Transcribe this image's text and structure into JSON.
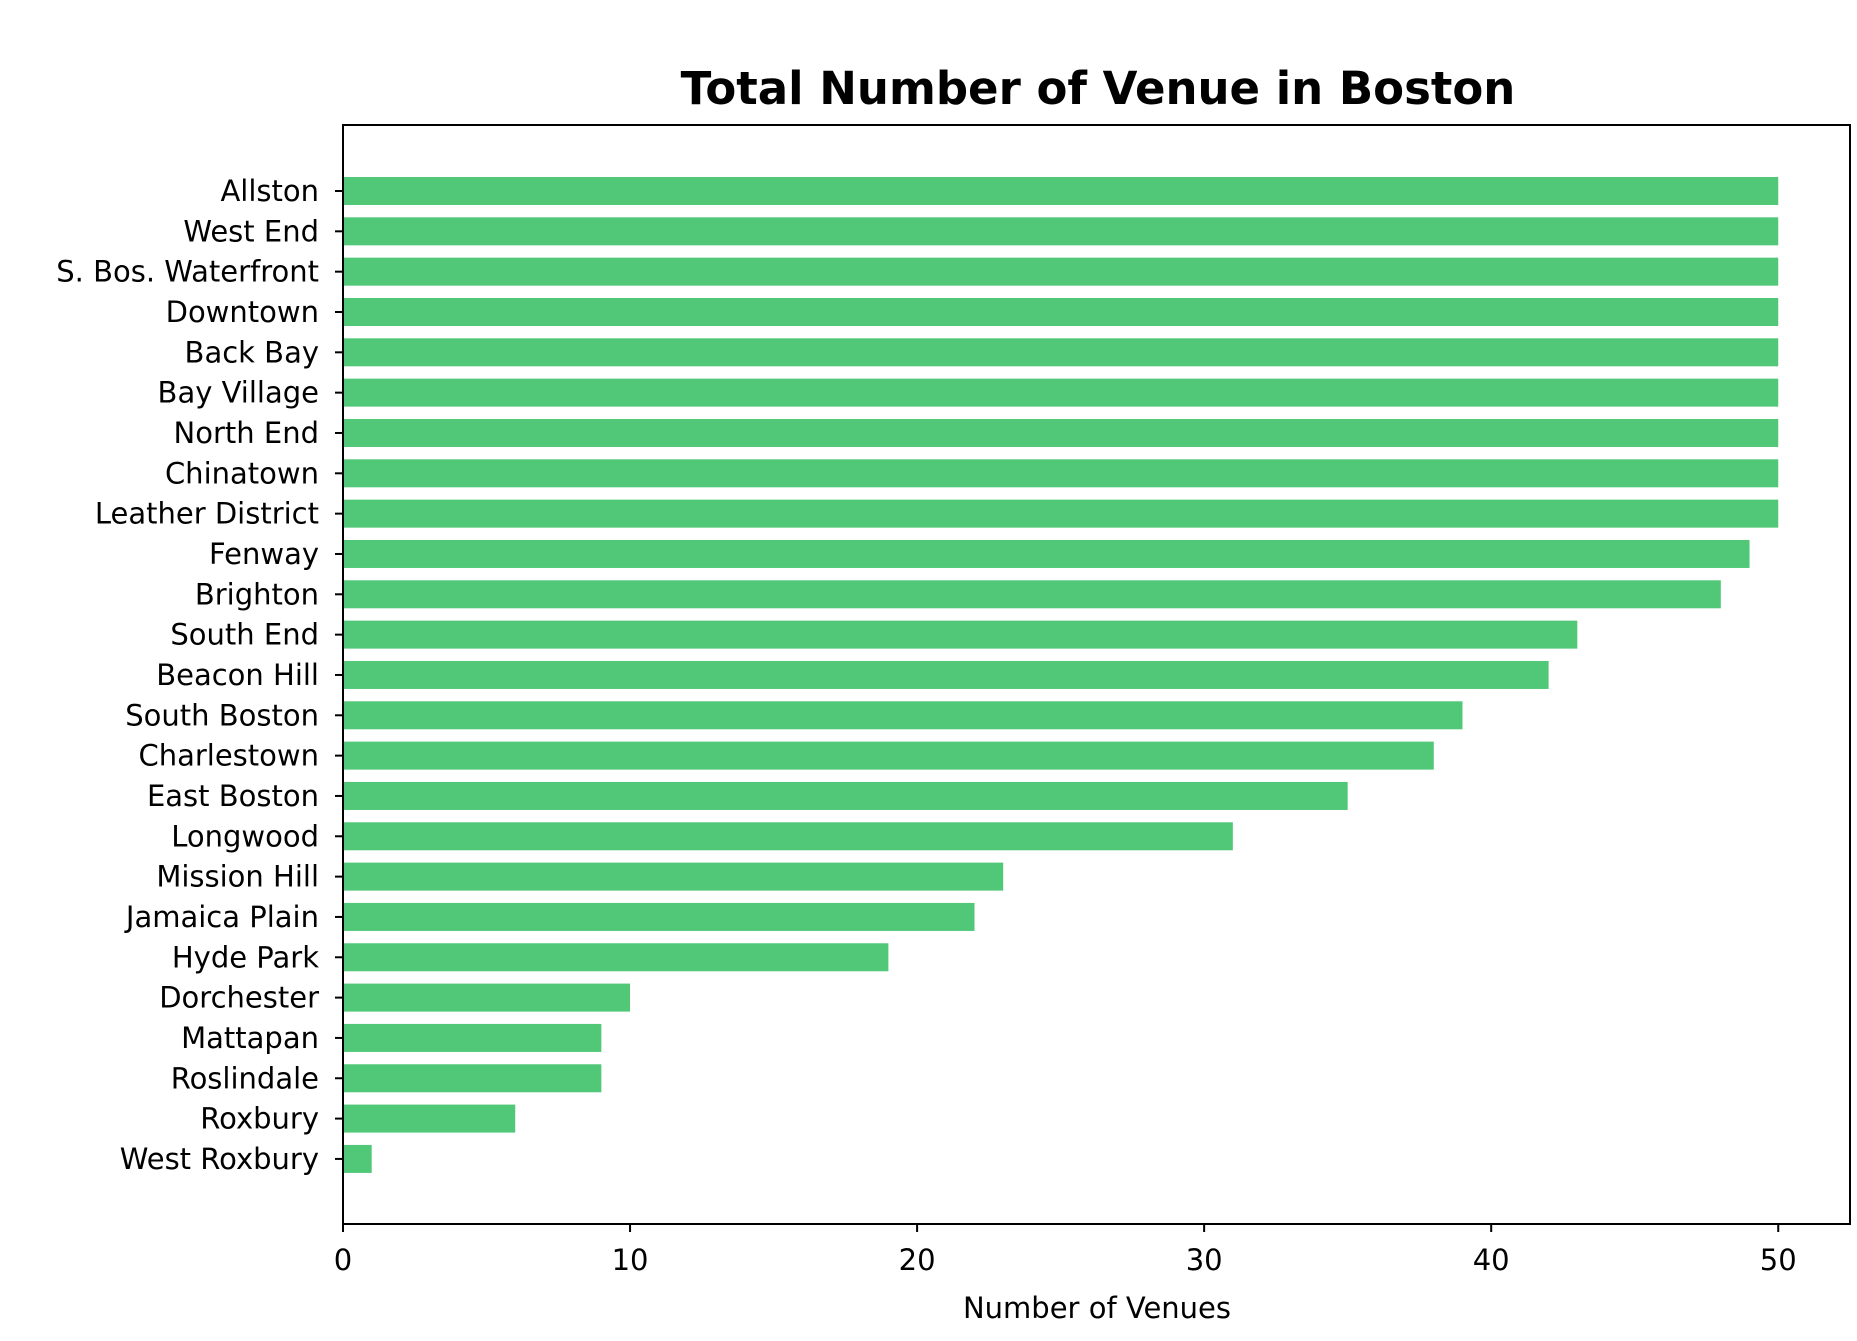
{
  "chart_data": {
    "type": "bar",
    "orientation": "horizontal",
    "title": "Total Number of Venue in Boston",
    "xlabel": "Number of Venues",
    "ylabel": "",
    "xlim": [
      0,
      52.5
    ],
    "xticks": [
      "0",
      "10",
      "20",
      "30",
      "40",
      "50"
    ],
    "bar_color": "#50c878",
    "grid": false,
    "categories": [
      "Allston",
      "West End",
      "S. Bos. Waterfront",
      "Downtown",
      "Back Bay",
      "Bay Village",
      "North End",
      "Chinatown",
      "Leather District",
      "Fenway",
      "Brighton",
      "South End",
      "Beacon Hill",
      "South Boston",
      "Charlestown",
      "East Boston",
      "Longwood",
      "Mission Hill",
      "Jamaica Plain",
      "Hyde Park",
      "Dorchester",
      "Mattapan",
      "Roslindale",
      "Roxbury",
      "West Roxbury"
    ],
    "values": [
      50,
      50,
      50,
      50,
      50,
      50,
      50,
      50,
      50,
      49,
      48,
      43,
      42,
      39,
      38,
      35,
      31,
      23,
      22,
      19,
      10,
      9,
      9,
      6,
      1
    ]
  }
}
